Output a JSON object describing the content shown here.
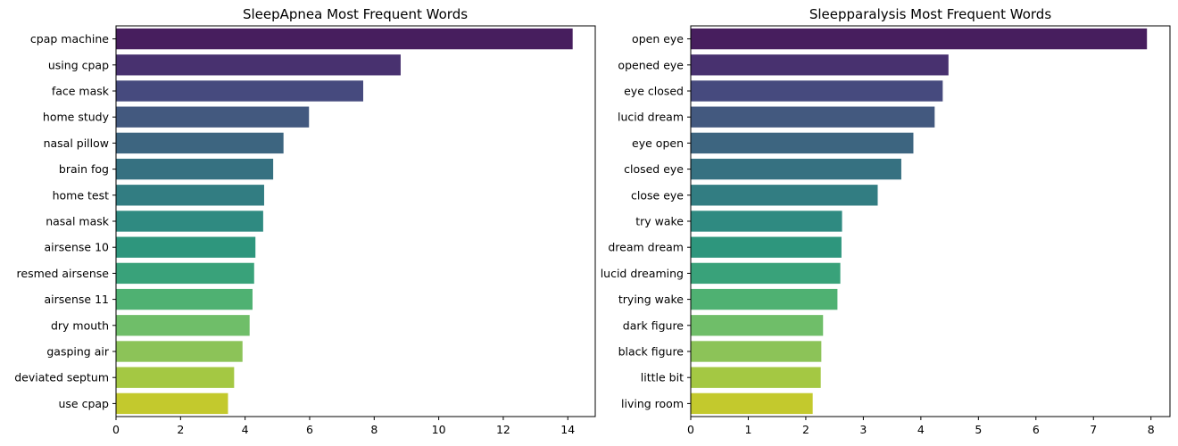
{
  "chart_data": [
    {
      "type": "bar",
      "orientation": "horizontal",
      "title": "SleepApnea Most Frequent Words",
      "xlabel": "",
      "ylabel": "",
      "categories": [
        "cpap machine",
        "using cpap",
        "face mask",
        "home study",
        "nasal pillow",
        "brain fog",
        "home test",
        "nasal mask",
        "airsense 10",
        "resmed airsense",
        "airsense 11",
        "dry mouth",
        "gasping air",
        "deviated septum",
        "use cpap"
      ],
      "values": [
        14.15,
        8.82,
        7.66,
        5.98,
        5.19,
        4.87,
        4.59,
        4.56,
        4.32,
        4.28,
        4.23,
        4.14,
        3.92,
        3.66,
        3.47
      ],
      "xlim": [
        0,
        14.85
      ],
      "xticks": [
        0,
        2,
        4,
        6,
        8,
        10,
        12,
        14
      ],
      "grid": false,
      "colormap": "viridis"
    },
    {
      "type": "bar",
      "orientation": "horizontal",
      "title": "Sleepparalysis Most Frequent Words",
      "xlabel": "",
      "ylabel": "",
      "categories": [
        "open eye",
        "opened eye",
        "eye closed",
        "lucid dream",
        "eye open",
        "closed eye",
        "close eye",
        "try wake",
        "dream dream",
        "lucid dreaming",
        "trying wake",
        "dark figure",
        "black figure",
        "little bit",
        "living room"
      ],
      "values": [
        7.93,
        4.48,
        4.38,
        4.24,
        3.87,
        3.66,
        3.25,
        2.63,
        2.62,
        2.6,
        2.55,
        2.3,
        2.27,
        2.26,
        2.12
      ],
      "xlim": [
        0,
        8.33
      ],
      "xticks": [
        0,
        1,
        2,
        3,
        4,
        5,
        6,
        7,
        8
      ],
      "grid": false,
      "colormap": "viridis"
    }
  ],
  "colors": {
    "bars": [
      "#471e5e",
      "#48316f",
      "#464a7e",
      "#43597f",
      "#3d6580",
      "#367181",
      "#327d82",
      "#2f8a81",
      "#2e967d",
      "#39a27a",
      "#4fb172",
      "#6fbe69",
      "#8cc358",
      "#a4c843",
      "#c3c92d"
    ]
  }
}
